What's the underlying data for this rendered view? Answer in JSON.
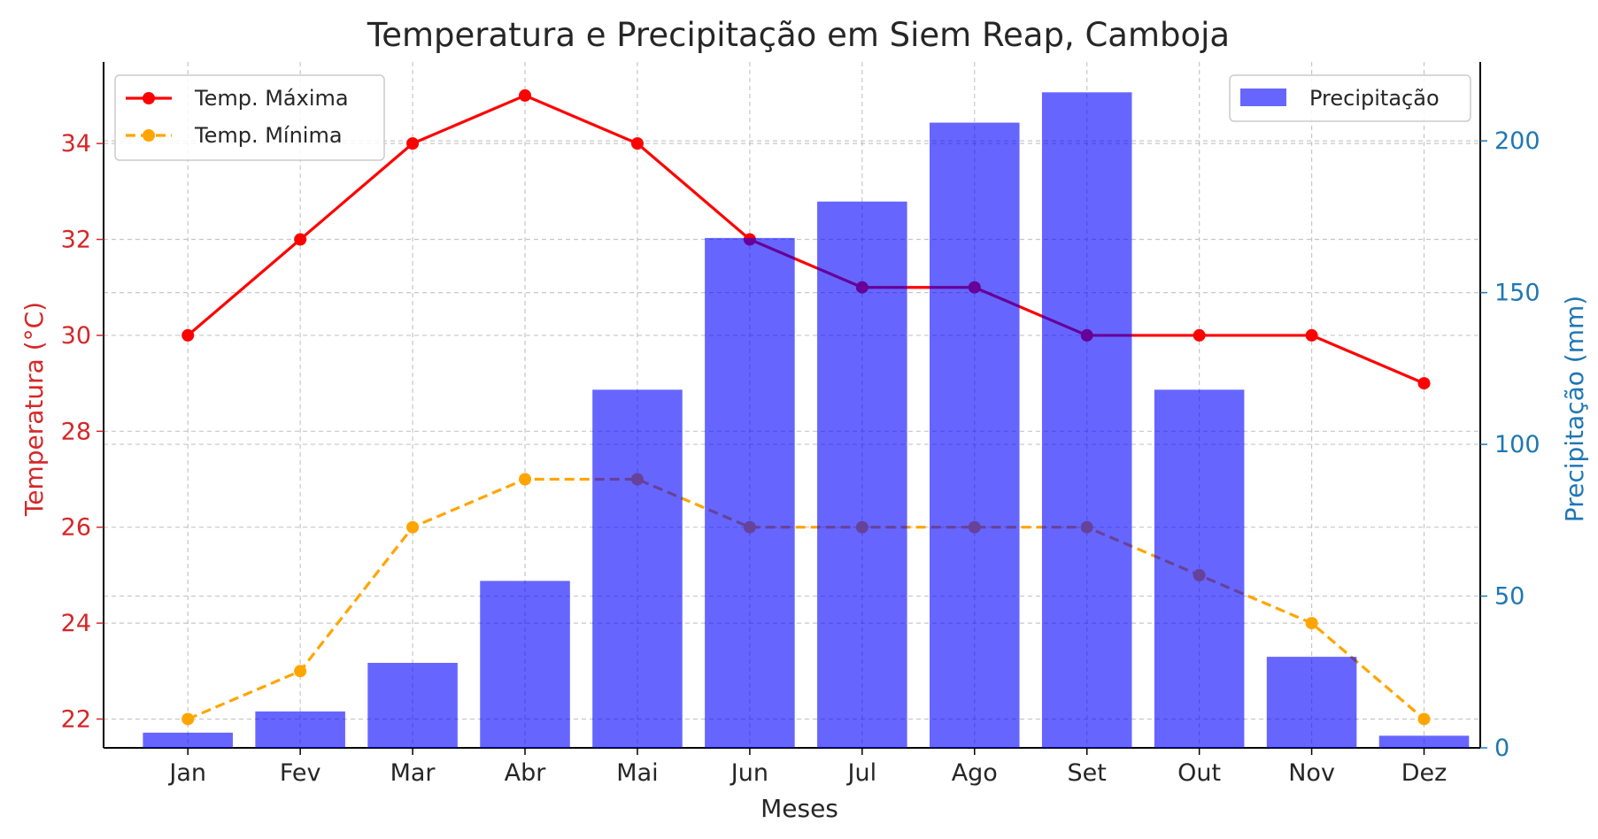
{
  "chart_data": {
    "type": "bar+line",
    "title": "Temperatura e Precipitação em Siem Reap, Camboja",
    "xlabel": "Meses",
    "ylabel_left": "Temperatura (°C)",
    "ylabel_right": "Precipitação (mm)",
    "categories": [
      "Jan",
      "Fev",
      "Mar",
      "Abr",
      "Mai",
      "Jun",
      "Jul",
      "Ago",
      "Set",
      "Out",
      "Nov",
      "Dez"
    ],
    "ylim_left": [
      21.4,
      35.7
    ],
    "ylim_right": [
      0,
      226
    ],
    "yticks_left": [
      22,
      24,
      26,
      28,
      30,
      32,
      34
    ],
    "yticks_right": [
      0,
      50,
      100,
      150,
      200
    ],
    "grid": true,
    "series": [
      {
        "name": "Temp. Máxima",
        "type": "line",
        "axis": "left",
        "style": "solid",
        "color": "#ff0000",
        "values": [
          30,
          32,
          34,
          35,
          34,
          32,
          31,
          31,
          30,
          30,
          30,
          29
        ]
      },
      {
        "name": "Temp. Mínima",
        "type": "line",
        "axis": "left",
        "style": "dashed",
        "color": "#ffa500",
        "values": [
          22,
          23,
          26,
          27,
          27,
          26,
          26,
          26,
          26,
          25,
          24,
          22
        ]
      },
      {
        "name": "Precipitação",
        "type": "bar",
        "axis": "right",
        "color": "#0000ff",
        "opacity": 0.6,
        "values": [
          5,
          12,
          28,
          55,
          118,
          168,
          180,
          206,
          216,
          118,
          30,
          4
        ]
      }
    ],
    "legend_left_position": "upper-left",
    "legend_right_position": "upper-right",
    "left_axis_color": "#d62728",
    "right_axis_color": "#1f77b4"
  }
}
